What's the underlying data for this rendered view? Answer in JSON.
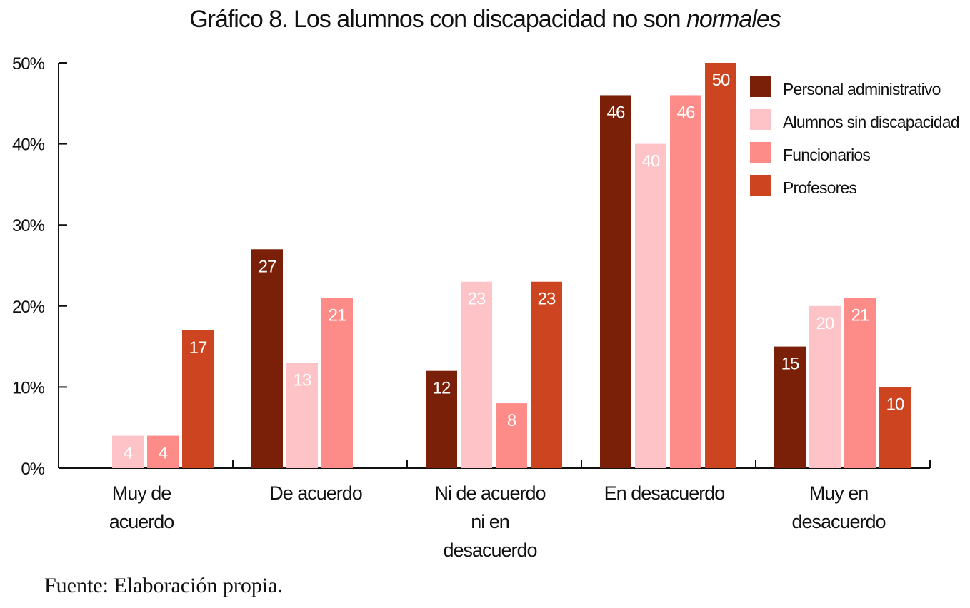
{
  "chart_data": {
    "type": "bar",
    "title_main": "Gráfico 8. Los alumnos con discapacidad no son ",
    "title_italic": "normales",
    "xlabel": "",
    "ylabel": "",
    "ylim": [
      0,
      50
    ],
    "yticks": [
      "0%",
      "10%",
      "20%",
      "30%",
      "40%",
      "50%"
    ],
    "categories": [
      [
        "Muy de",
        "acuerdo"
      ],
      [
        "De acuerdo"
      ],
      [
        "Ni de acuerdo",
        "ni en",
        "desacuerdo"
      ],
      [
        "En desacuerdo"
      ],
      [
        "Muy en",
        "desacuerdo"
      ]
    ],
    "series": [
      {
        "name": "Personal administrativo",
        "color": "#7b2008",
        "values": [
          0,
          27,
          12,
          46,
          15
        ]
      },
      {
        "name": "Alumnos sin discapacidad",
        "color": "#fdc3c7",
        "values": [
          4,
          13,
          23,
          40,
          20
        ]
      },
      {
        "name": "Funcionarios",
        "color": "#fd8b88",
        "values": [
          4,
          21,
          8,
          46,
          21
        ]
      },
      {
        "name": "Profesores",
        "color": "#cd4520",
        "values": [
          17,
          0,
          23,
          50,
          10
        ]
      }
    ],
    "data_labels": true,
    "legend": "top-right",
    "grid": false
  },
  "source": "Fuente: Elaboración propia."
}
